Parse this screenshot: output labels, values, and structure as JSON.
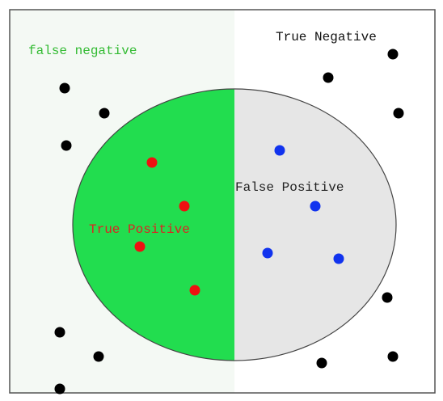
{
  "labels": {
    "false_negative": "false negative",
    "true_negative": "True Negative",
    "true_positive": "True Positive",
    "false_positive": "False Positive"
  }
}
